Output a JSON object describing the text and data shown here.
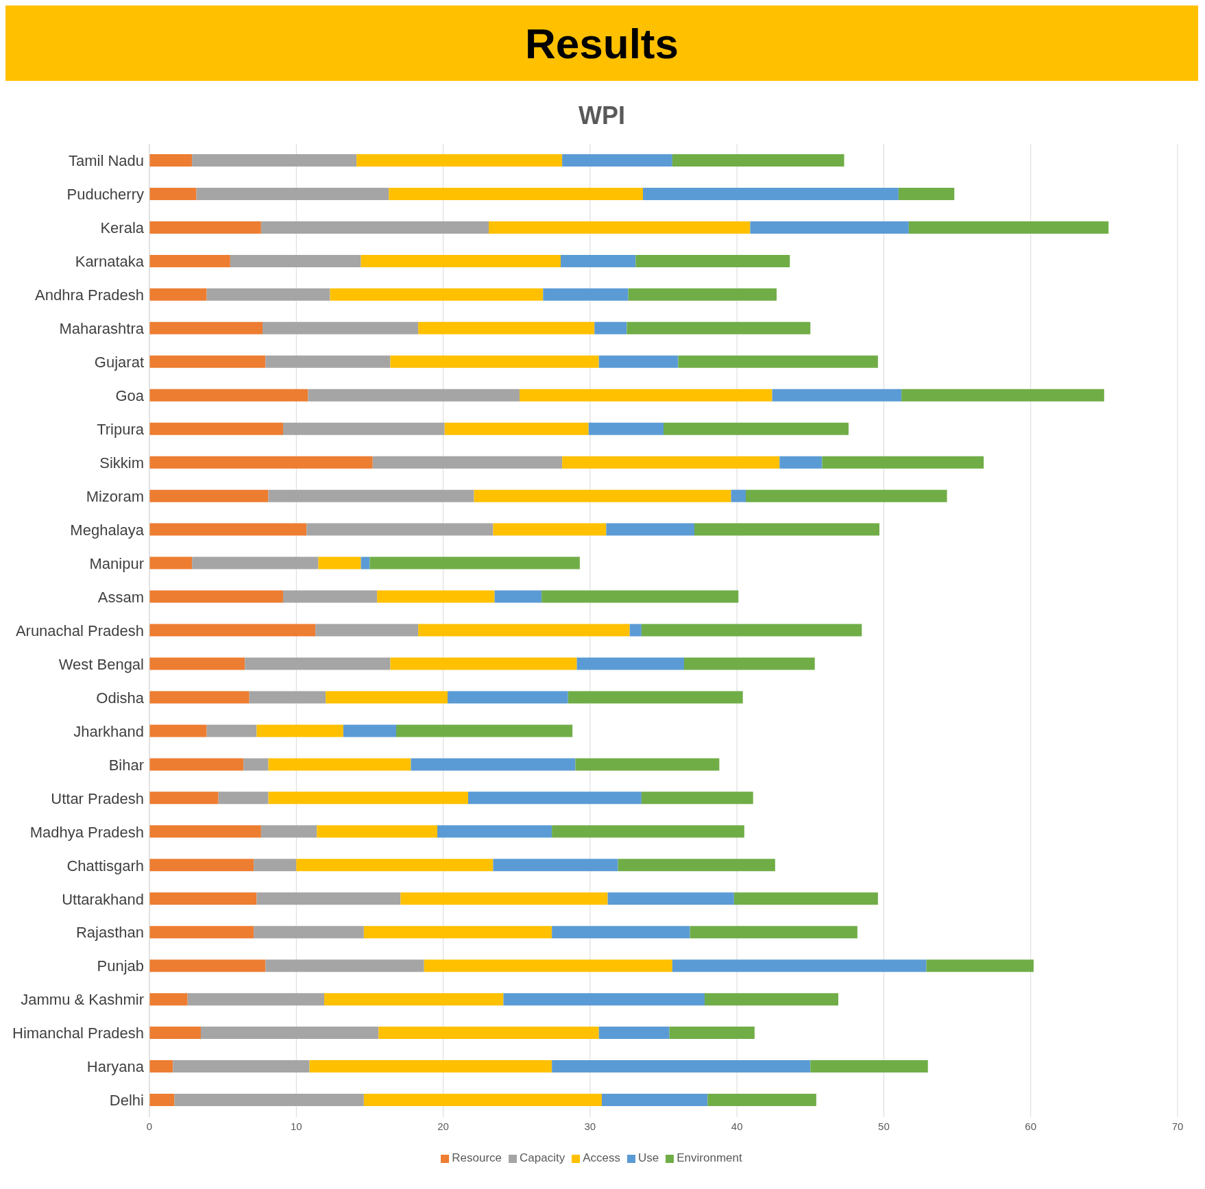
{
  "chart_data": {
    "type": "bar",
    "orientation": "horizontal",
    "stacked": true,
    "title": "Results",
    "subtitle": "WPI",
    "categories": [
      "Tamil Nadu",
      "Puducherry",
      "Kerala",
      "Karnataka",
      "Andhra Pradesh",
      "Maharashtra",
      "Gujarat",
      "Goa",
      "Tripura",
      "Sikkim",
      "Mizoram",
      "Meghalaya",
      "Manipur",
      "Assam",
      "Arunachal Pradesh",
      "West Bengal",
      "Odisha",
      "Jharkhand",
      "Bihar",
      "Uttar Pradesh",
      "Madhya Pradesh",
      "Chattisgarh",
      "Uttarakhand",
      "Rajasthan",
      "Punjab",
      "Jammu & Kashmir",
      "Himanchal Pradesh",
      "Haryana",
      "Delhi"
    ],
    "series": [
      {
        "name": "Resource",
        "color": "#ed7d31",
        "values": [
          2.9,
          3.2,
          7.6,
          5.5,
          3.9,
          7.7,
          7.9,
          10.8,
          9.1,
          15.2,
          8.1,
          10.7,
          2.9,
          9.1,
          11.3,
          6.5,
          6.8,
          3.9,
          6.4,
          4.7,
          7.6,
          7.1,
          7.3,
          7.1,
          7.9,
          2.6,
          3.5,
          1.6,
          1.7
        ]
      },
      {
        "name": "Capacity",
        "color": "#a5a5a5",
        "values": [
          11.2,
          13.1,
          15.5,
          8.9,
          8.4,
          10.6,
          8.5,
          14.4,
          11.0,
          12.9,
          14.0,
          12.7,
          8.6,
          6.4,
          7.0,
          9.9,
          5.2,
          3.4,
          1.7,
          3.4,
          3.8,
          2.9,
          9.8,
          7.5,
          10.8,
          9.3,
          12.1,
          9.3,
          12.9
        ]
      },
      {
        "name": "Access",
        "color": "#ffc000",
        "values": [
          14.0,
          17.3,
          17.8,
          13.6,
          14.5,
          12.0,
          14.2,
          17.2,
          9.8,
          14.8,
          17.5,
          7.7,
          2.9,
          8.0,
          14.4,
          12.7,
          8.3,
          5.9,
          9.7,
          13.6,
          8.2,
          13.4,
          14.1,
          12.8,
          16.9,
          12.2,
          15.0,
          16.5,
          16.2
        ]
      },
      {
        "name": "Use",
        "color": "#5b9bd5",
        "values": [
          7.5,
          17.4,
          10.8,
          5.1,
          5.8,
          2.2,
          5.4,
          8.8,
          5.1,
          2.9,
          1.0,
          6.0,
          0.6,
          3.2,
          0.8,
          7.3,
          8.2,
          3.6,
          11.2,
          11.8,
          7.8,
          8.5,
          8.6,
          9.4,
          17.3,
          13.7,
          4.8,
          17.6,
          7.2
        ]
      },
      {
        "name": "Environment",
        "color": "#70ad47",
        "values": [
          11.7,
          3.8,
          13.6,
          10.5,
          10.1,
          12.5,
          13.6,
          13.8,
          12.6,
          11.0,
          13.7,
          12.6,
          14.3,
          13.4,
          15.0,
          8.9,
          11.9,
          12.0,
          9.8,
          7.6,
          13.1,
          10.7,
          9.8,
          11.4,
          7.3,
          9.1,
          5.8,
          8.0,
          7.4
        ]
      }
    ],
    "xlim": [
      0,
      70
    ],
    "xticks": [
      0,
      10,
      20,
      30,
      40,
      50,
      60,
      70
    ],
    "grid": "x",
    "legend": "bottom"
  }
}
